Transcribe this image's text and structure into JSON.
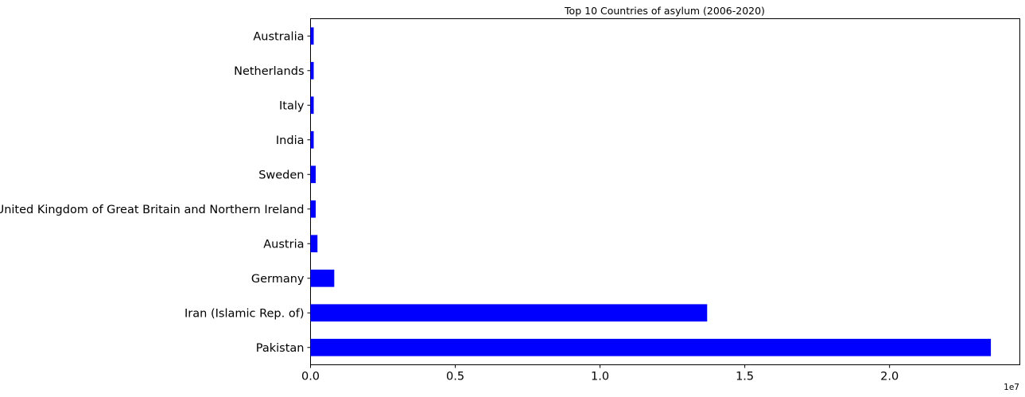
{
  "chart_data": {
    "type": "bar",
    "orientation": "horizontal",
    "title": "Top 10 Countries of asylum (2006-2020)",
    "xlabel": "",
    "ylabel": "",
    "categories": [
      "Pakistan",
      "Iran (Islamic Rep. of)",
      "Germany",
      "Austria",
      "United Kingdom of Great Britain and Northern Ireland",
      "Sweden",
      "India",
      "Italy",
      "Netherlands",
      "Australia"
    ],
    "values": [
      23500000,
      13700000,
      820000,
      240000,
      180000,
      180000,
      110000,
      110000,
      110000,
      110000
    ],
    "xlim": [
      0,
      24500000
    ],
    "x_ticks": [
      0,
      5000000,
      10000000,
      15000000,
      20000000
    ],
    "x_tick_labels": [
      "0.0",
      "0.5",
      "1.0",
      "1.5",
      "2.0"
    ],
    "x_offset_label": "1e7",
    "bar_color": "#0000ff",
    "grid": false,
    "legend": "none"
  }
}
